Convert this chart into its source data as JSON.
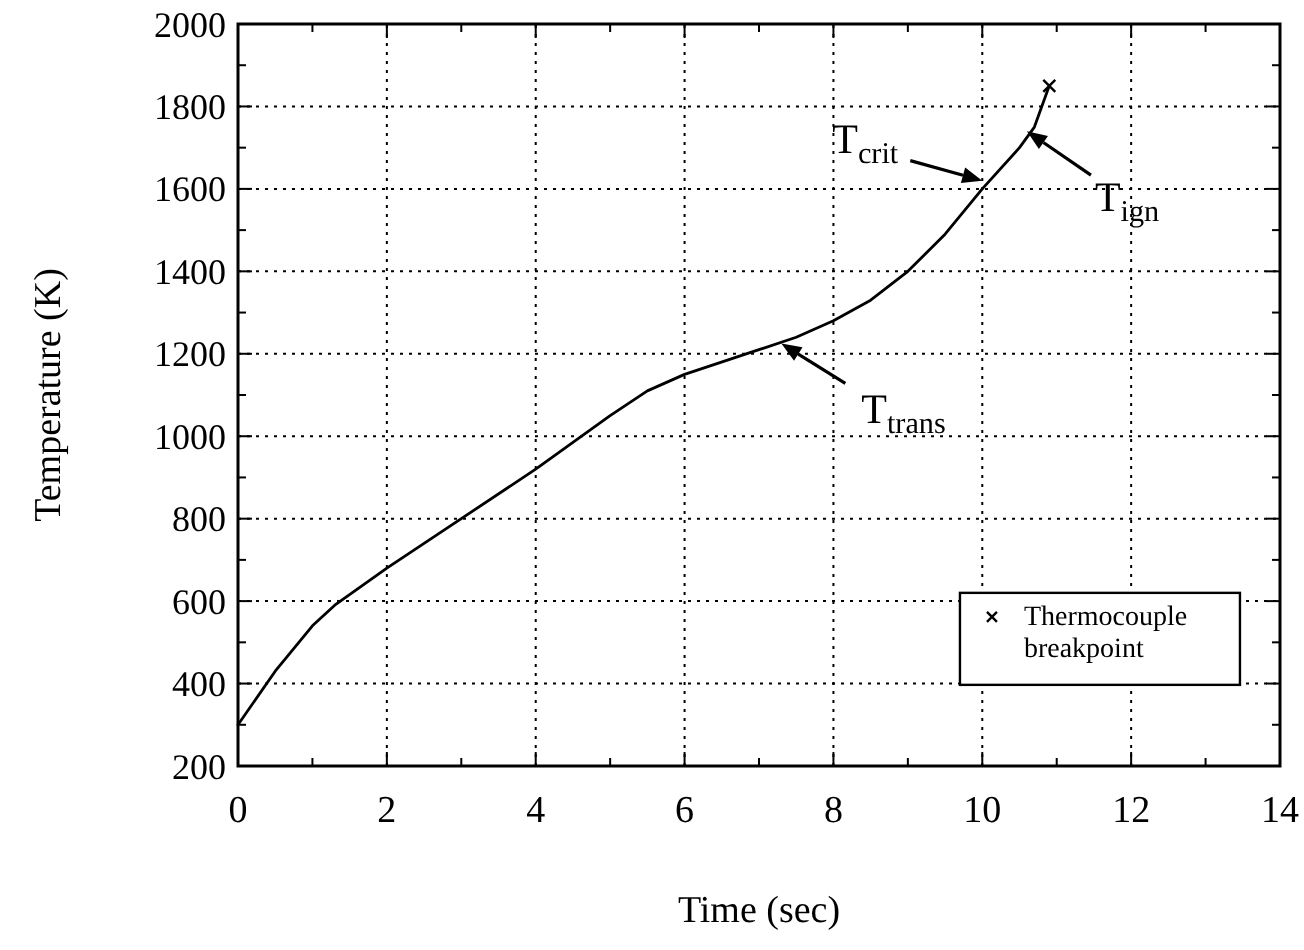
{
  "chart_data": {
    "type": "line",
    "xlabel": "Time (sec)",
    "ylabel": "Temperature (K)",
    "xlim": [
      0,
      14
    ],
    "ylim": [
      200,
      2000
    ],
    "xticks": [
      0,
      {
        "value": 1,
        "label": null
      },
      2,
      {
        "value": 3,
        "label": null
      },
      4,
      {
        "value": 5,
        "label": null
      },
      6,
      {
        "value": 7,
        "label": null
      },
      8,
      {
        "value": 9,
        "label": null
      },
      10,
      {
        "value": 11,
        "label": null
      },
      12,
      {
        "value": 13,
        "label": null
      },
      14
    ],
    "yticks": [
      200,
      {
        "value": 300,
        "label": null
      },
      400,
      {
        "value": 500,
        "label": null
      },
      600,
      {
        "value": 700,
        "label": null
      },
      800,
      {
        "value": 900,
        "label": null
      },
      1000,
      {
        "value": 1100,
        "label": null
      },
      1200,
      {
        "value": 1300,
        "label": null
      },
      1400,
      {
        "value": 1500,
        "label": null
      },
      1600,
      {
        "value": 1700,
        "label": null
      },
      1800,
      {
        "value": 1900,
        "label": null
      },
      2000
    ],
    "grid": true,
    "legend": "bottom right",
    "line_style": "solid",
    "series": [
      {
        "color": "#000000",
        "marker": "none",
        "x": [
          0,
          0.5,
          1,
          1.3,
          2,
          3,
          4,
          5,
          5.5,
          6,
          7,
          7.5,
          8,
          8.5,
          9,
          9.5,
          10,
          10.5,
          10.7,
          10.9
        ],
        "values": [
          300,
          430,
          540,
          590,
          680,
          800,
          920,
          1050,
          1110,
          1150,
          1210,
          1240,
          1280,
          1330,
          1400,
          1490,
          1600,
          1700,
          1750,
          1850
        ]
      },
      {
        "type": "scatter",
        "name": "Thermocouple breakpoint",
        "color": "#000000",
        "marker": "cross",
        "x": [
          10.9
        ],
        "values": [
          1850
        ]
      }
    ],
    "annotations": [
      {
        "text": "T$_{crit}$",
        "x": 10,
        "y": 1620
      },
      {
        "text": "T$_{ign}$",
        "x": 10.6,
        "y": 1740
      },
      {
        "text": "T$_{trans}$",
        "x": 7.3,
        "y": 1225
      }
    ]
  }
}
